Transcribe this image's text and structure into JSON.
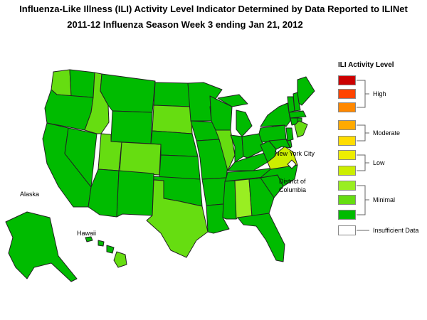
{
  "title_line1": "Influenza-Like Illness (ILI) Activity Level Indicator Determined by Data Reported to ILINet",
  "title_line2": "2011-12  Influenza Season Week  3 ending Jan 21, 2012",
  "map_labels": {
    "alaska": "Alaska",
    "hawaii": "Hawaii",
    "new_york_city": "New York City",
    "dc_line1": "District of",
    "dc_line2": "Columbia"
  },
  "legend": {
    "title": "ILI Activity Level",
    "groups": {
      "high": "High",
      "moderate": "Moderate",
      "low": "Low",
      "minimal": "Minimal",
      "insufficient": "Insufficient Data"
    },
    "levels": [
      {
        "level": 10,
        "color": "#cc0000"
      },
      {
        "level": 9,
        "color": "#ff4400"
      },
      {
        "level": 8,
        "color": "#ff8800"
      },
      {
        "level": 7,
        "color": "#ffaa00"
      },
      {
        "level": 6,
        "color": "#ffdd00"
      },
      {
        "level": 5,
        "color": "#eeee00"
      },
      {
        "level": 4,
        "color": "#ccee00"
      },
      {
        "level": 3,
        "color": "#99ee22"
      },
      {
        "level": 2,
        "color": "#66dd11"
      },
      {
        "level": 1,
        "color": "#00bb00"
      },
      {
        "level": 0,
        "color": "#ffffff"
      }
    ]
  },
  "state_levels": {
    "level_1": [
      "WA-E",
      "OR",
      "CA",
      "NV",
      "AZ",
      "NM",
      "MT",
      "WY",
      "ND",
      "SD-W",
      "NE",
      "KS",
      "OK",
      "MN",
      "IA",
      "MO",
      "AR",
      "LA",
      "MS",
      "WI",
      "MI",
      "IN",
      "OH",
      "KY",
      "TN",
      "GA",
      "SC",
      "NC",
      "FL",
      "WV",
      "PA",
      "NY",
      "ME",
      "VT",
      "NH",
      "MA",
      "CT",
      "RI",
      "NJ",
      "DE",
      "MD",
      "AK",
      "HI-main"
    ],
    "level_2": [
      "WA-W",
      "ID",
      "UT",
      "CO",
      "TX",
      "IL",
      "SD",
      "HI"
    ],
    "level_3": [
      "AL"
    ],
    "level_4": [
      "VA"
    ]
  }
}
